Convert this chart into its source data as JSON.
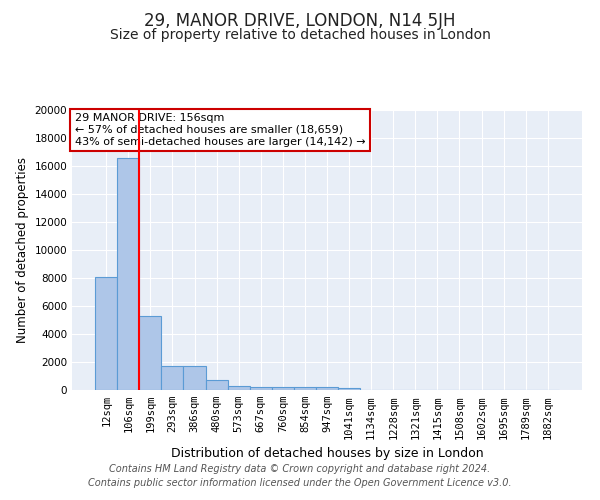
{
  "title": "29, MANOR DRIVE, LONDON, N14 5JH",
  "subtitle": "Size of property relative to detached houses in London",
  "xlabel": "Distribution of detached houses by size in London",
  "ylabel": "Number of detached properties",
  "categories": [
    "12sqm",
    "106sqm",
    "199sqm",
    "293sqm",
    "386sqm",
    "480sqm",
    "573sqm",
    "667sqm",
    "760sqm",
    "854sqm",
    "947sqm",
    "1041sqm",
    "1134sqm",
    "1228sqm",
    "1321sqm",
    "1415sqm",
    "1508sqm",
    "1602sqm",
    "1695sqm",
    "1789sqm",
    "1882sqm"
  ],
  "bar_values": [
    8100,
    16600,
    5300,
    1750,
    1750,
    700,
    300,
    250,
    220,
    200,
    180,
    160,
    0,
    0,
    0,
    0,
    0,
    0,
    0,
    0,
    0
  ],
  "bar_color": "#aec6e8",
  "bar_edgecolor": "#5b9bd5",
  "background_color": "#e8eef7",
  "grid_color": "#ffffff",
  "red_line_x": 1.5,
  "annotation_text": "29 MANOR DRIVE: 156sqm\n← 57% of detached houses are smaller (18,659)\n43% of semi-detached houses are larger (14,142) →",
  "annotation_box_color": "#ffffff",
  "annotation_box_edgecolor": "#cc0000",
  "ylim": [
    0,
    20000
  ],
  "yticks": [
    0,
    2000,
    4000,
    6000,
    8000,
    10000,
    12000,
    14000,
    16000,
    18000,
    20000
  ],
  "footer_line1": "Contains HM Land Registry data © Crown copyright and database right 2024.",
  "footer_line2": "Contains public sector information licensed under the Open Government Licence v3.0.",
  "title_fontsize": 12,
  "subtitle_fontsize": 10,
  "xlabel_fontsize": 9,
  "ylabel_fontsize": 8.5,
  "tick_fontsize": 7.5,
  "annotation_fontsize": 8,
  "footer_fontsize": 7
}
